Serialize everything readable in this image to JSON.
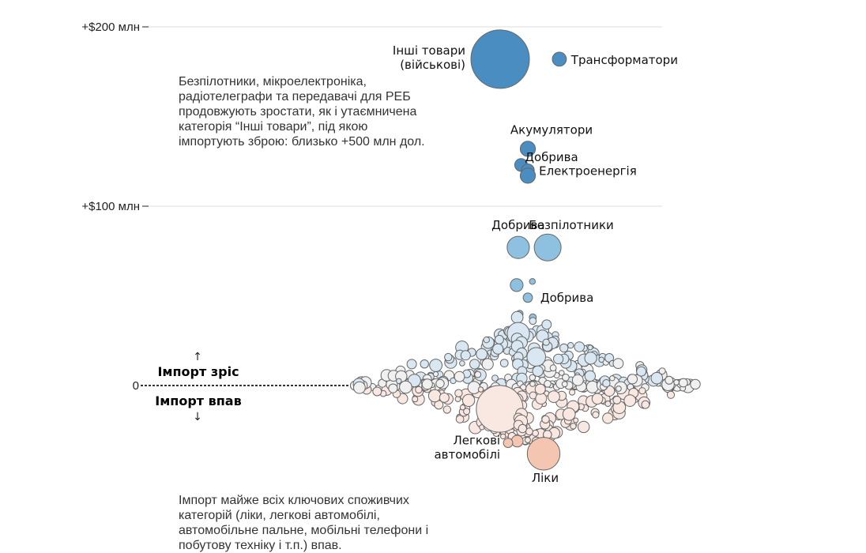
{
  "chart_data": {
    "type": "scatter",
    "title": "",
    "ylabel": "",
    "ylim": [
      -60,
      210
    ],
    "yticks": [
      {
        "value": 200,
        "label": "+$200 млн"
      },
      {
        "value": 100,
        "label": "+$100 млн"
      },
      {
        "value": 0,
        "label": "0"
      }
    ],
    "direction_labels": {
      "up": "Імпорт зріс",
      "down": "Імпорт впав",
      "up_arrow": "↑",
      "down_arrow": "↓"
    },
    "annotations": {
      "top": "Безпілотники, мікроелектроніка,\nрадіотелеграфи та передавачі для РЕБ\nпродовжують зростати, як і утаємничена\nкатегорія “Інші товари”, під якою\nімпортують зброю: близько +500 млн дол.",
      "bottom": "Імпорт майже всіх ключових споживчих\nкатегорій (ліки, легкові автомобілі,\nавтомобільне пальне, мобільні телефони і\nпобутову техніку і т.п.) впав."
    },
    "colors": {
      "strong_up": "#4a8dc1",
      "medium_up": "#8ec1df",
      "light_up": "#d8e7f1",
      "neutral": "#f0f0f0",
      "light_down": "#f9e7e1",
      "medium_down": "#f4c6b1"
    },
    "labeled_points": [
      {
        "name": "Інші товари (військові)",
        "label_lines": [
          "Інші товари",
          "(військові)"
        ],
        "change": 182,
        "rank": 0,
        "size": 5,
        "tone": "strong_up"
      },
      {
        "name": "Трансформатори",
        "label_lines": [
          "Трансформатори"
        ],
        "change": 182,
        "rank": 1,
        "size": 1.2,
        "tone": "strong_up"
      },
      {
        "name": "Акумулятори",
        "label_lines": [
          "Акумулятори"
        ],
        "change": 132,
        "rank": 0,
        "size": 1.3,
        "tone": "strong_up"
      },
      {
        "name": "Електроенергія",
        "label_lines": [
          "Електроенергія"
        ],
        "change": 120,
        "rank": 1,
        "size": 1.1,
        "tone": "strong_up"
      },
      {
        "name": "Добрива",
        "label_lines": [
          "Добрива"
        ],
        "change": 117,
        "rank": 0,
        "size": 1.3,
        "tone": "strong_up"
      },
      {
        "name": "Добрива",
        "label_lines": [
          "Добрива"
        ],
        "change": 77,
        "rank": 0,
        "size": 1.9,
        "tone": "medium_up"
      },
      {
        "name": "Безпілотники",
        "label_lines": [
          "Безпілотники"
        ],
        "change": 77,
        "rank": 1,
        "size": 2.3,
        "tone": "medium_up"
      },
      {
        "name": "Добрива",
        "label_lines": [
          "Добрива"
        ],
        "change": 49,
        "rank": 0,
        "size": 0.8,
        "tone": "medium_up"
      },
      {
        "name": "Легкові автомобілі",
        "label_lines": [
          "Легкові",
          "автомобілі"
        ],
        "change": -32,
        "rank": 0,
        "size": 0.8,
        "tone": "medium_down"
      },
      {
        "name": "Ліки",
        "label_lines": [
          "Ліки"
        ],
        "change": -38,
        "rank": 0,
        "size": 2.8,
        "tone": "medium_down"
      }
    ],
    "unlabeled_points": [
      {
        "change": 123,
        "rank": 0,
        "size": 1.1,
        "tone": "strong_up"
      },
      {
        "change": 56,
        "rank": 0,
        "size": 1.1,
        "tone": "medium_up"
      },
      {
        "change": 58,
        "rank": 1,
        "size": 0.5,
        "tone": "medium_up"
      },
      {
        "change": 40,
        "rank": 0,
        "size": 0.6,
        "tone": "medium_up"
      },
      {
        "change": 38,
        "rank": 1,
        "size": 0.6,
        "tone": "medium_up"
      },
      {
        "change": 38,
        "rank": 0,
        "size": 1.0,
        "tone": "light_up"
      },
      {
        "change": 36,
        "rank": 1,
        "size": 0.6,
        "tone": "light_up"
      },
      {
        "change": 34,
        "rank": 2,
        "size": 0.8,
        "tone": "light_up"
      },
      {
        "change": 29,
        "rank": 0,
        "size": 1.9,
        "tone": "light_up"
      },
      {
        "change": 26,
        "rank": 0,
        "size": 1.0,
        "tone": "light_up"
      },
      {
        "change": 24,
        "rank": 0,
        "size": 1.0,
        "tone": "light_up"
      },
      {
        "change": 22,
        "rank": 0,
        "size": 1.0,
        "tone": "light_up"
      },
      {
        "change": 18,
        "rank": 0,
        "size": 0.9,
        "tone": "light_up"
      },
      {
        "change": 16,
        "rank": 0,
        "size": 0.8,
        "tone": "light_up"
      },
      {
        "change": 16,
        "rank": 1,
        "size": 1.6,
        "tone": "light_up"
      },
      {
        "change": 12,
        "rank": 0,
        "size": 0.9,
        "tone": "light_up"
      },
      {
        "change": 8,
        "rank": 0,
        "size": 0.8,
        "tone": "light_up"
      },
      {
        "change": 8,
        "rank": 1,
        "size": 0.9,
        "tone": "light_up"
      },
      {
        "change": 4,
        "rank": 0,
        "size": 0.9,
        "tone": "light_up"
      },
      {
        "change": 1,
        "rank": 0,
        "size": 0.5,
        "tone": "neutral"
      },
      {
        "change": -1,
        "rank": 0,
        "size": 0.5,
        "tone": "neutral"
      },
      {
        "change": -4,
        "rank": 0,
        "size": 0.9,
        "tone": "light_down"
      },
      {
        "change": -6,
        "rank": 0,
        "size": 0.9,
        "tone": "light_down"
      },
      {
        "change": -8,
        "rank": 0,
        "size": 1.1,
        "tone": "light_down"
      },
      {
        "change": -11,
        "rank": 0,
        "size": 0.8,
        "tone": "light_down"
      },
      {
        "change": -13,
        "rank": 0,
        "size": 4.0,
        "tone": "light_down"
      },
      {
        "change": -16,
        "rank": 0,
        "size": 1.0,
        "tone": "light_down"
      },
      {
        "change": -18,
        "rank": 0,
        "size": 0.8,
        "tone": "light_down"
      },
      {
        "change": -20,
        "rank": 0,
        "size": 1.1,
        "tone": "light_down"
      },
      {
        "change": -22,
        "rank": 0,
        "size": 0.8,
        "tone": "light_down"
      },
      {
        "change": -24,
        "rank": 0,
        "size": 0.7,
        "tone": "light_down"
      },
      {
        "change": -31,
        "rank": 0,
        "size": 1.0,
        "tone": "medium_down"
      }
    ]
  }
}
